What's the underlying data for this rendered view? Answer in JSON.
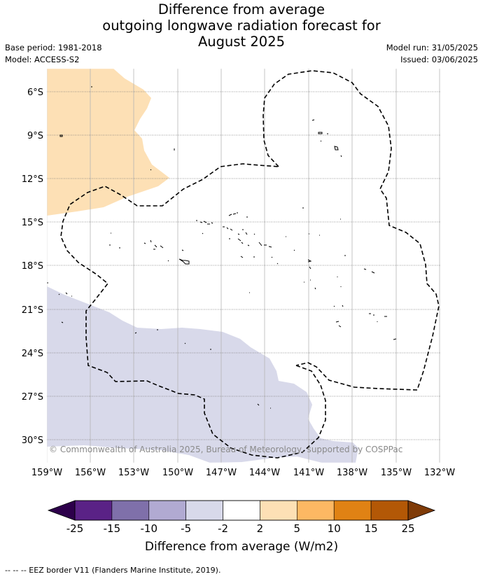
{
  "title": {
    "line1": "Difference from average",
    "line2": "outgoing longwave radiation forecast for",
    "line3": "August 2025"
  },
  "meta": {
    "base_period": "Base period: 1981-2018",
    "model": "Model: ACCESS-S2",
    "model_run": "Model run: 31/05/2025",
    "issued": "Issued: 03/06/2025"
  },
  "map": {
    "longitude_ticks": [
      "159°W",
      "156°W",
      "153°W",
      "150°W",
      "147°W",
      "144°W",
      "141°W",
      "138°W",
      "135°W",
      "132°W"
    ],
    "latitude_ticks": [
      "6°S",
      "9°S",
      "12°S",
      "15°S",
      "18°S",
      "21°S",
      "24°S",
      "27°S",
      "30°S"
    ],
    "credit": "© Commonwealth of Australia 2025, Bureau of Meteorology, supported by COSPPac",
    "colors": {
      "positive_2_5": "#fde0b5",
      "negative_2_5": "#d8d9ea",
      "background": "#ffffff",
      "gridline": "#bdbdbd"
    }
  },
  "colorbar": {
    "title": "Difference from average (W/m2)",
    "tick_labels": [
      "-25",
      "-15",
      "-10",
      "-5",
      "-2",
      "2",
      "5",
      "10",
      "15",
      "25"
    ],
    "bins": [
      {
        "color": "#5a2286"
      },
      {
        "color": "#7f70aa"
      },
      {
        "color": "#b1aad2"
      },
      {
        "color": "#d8d9ea"
      },
      {
        "color": "#ffffff"
      },
      {
        "color": "#fde0b5"
      },
      {
        "color": "#fdb863"
      },
      {
        "color": "#e08214"
      },
      {
        "color": "#b35806"
      }
    ],
    "under_color": "#2d004b",
    "over_color": "#7f3b08"
  },
  "footer": "--  --  -- EEZ border V11 (Flanders Marine Institute, 2019)."
}
